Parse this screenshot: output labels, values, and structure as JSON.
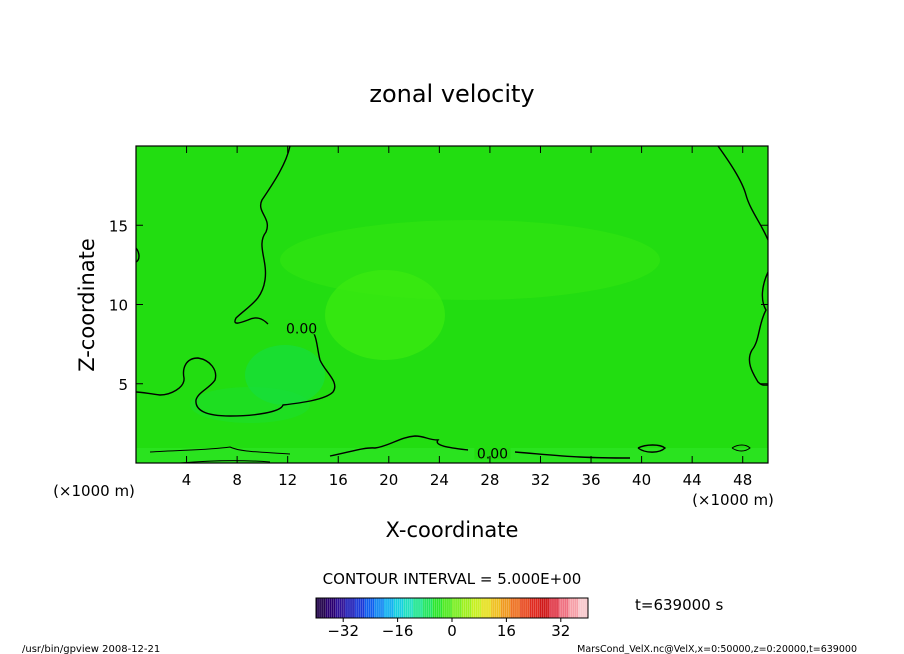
{
  "chart_data": {
    "type": "heatmap",
    "title": "zonal velocity",
    "xlabel": "X-coordinate",
    "ylabel": "Z-coordinate",
    "x_unit_left": "(×1000 m)",
    "x_unit_right": "(×1000 m)",
    "xlim": [
      0,
      50
    ],
    "ylim": [
      0,
      20
    ],
    "x_ticks": [
      4,
      8,
      12,
      16,
      20,
      24,
      28,
      32,
      36,
      40,
      44,
      48
    ],
    "y_ticks": [
      5,
      10,
      15
    ],
    "field_color": "#22dd11",
    "contour_color": "#000000",
    "contour_labels": [
      {
        "text": "0.00",
        "x": 13.1,
        "y": 8.5
      },
      {
        "text": "0.00",
        "x": 28.2,
        "y": 0.6
      }
    ],
    "contour_interval_text": "CONTOUR INTERVAL = 5.000E+00",
    "time_text": "t=639000 s",
    "colorbar": {
      "min": -40,
      "max": 40,
      "tick_values": [
        -32,
        -16,
        0,
        16,
        32
      ],
      "tick_labels": [
        "−32",
        "−16",
        "0",
        "16",
        "32"
      ],
      "colors": [
        "#20004a",
        "#2a0070",
        "#2e1096",
        "#2020b8",
        "#1a3ad8",
        "#1060ee",
        "#1088f2",
        "#10b0f0",
        "#18d0e0",
        "#20e0c0",
        "#20e690",
        "#22e660",
        "#2ee62e",
        "#50ea20",
        "#7aee20",
        "#a0f020",
        "#c8f020",
        "#e6e020",
        "#f0c020",
        "#f09a20",
        "#ee7020",
        "#e84a20",
        "#e02a20",
        "#d01818",
        "#e03848",
        "#f07080",
        "#f6a0a8",
        "#f8c8cc"
      ]
    }
  },
  "footer": {
    "left": "/usr/bin/gpview   2008-12-21",
    "right": "MarsCond_VelX.nc@VelX,x=0:50000,z=0:20000,t=639000"
  }
}
